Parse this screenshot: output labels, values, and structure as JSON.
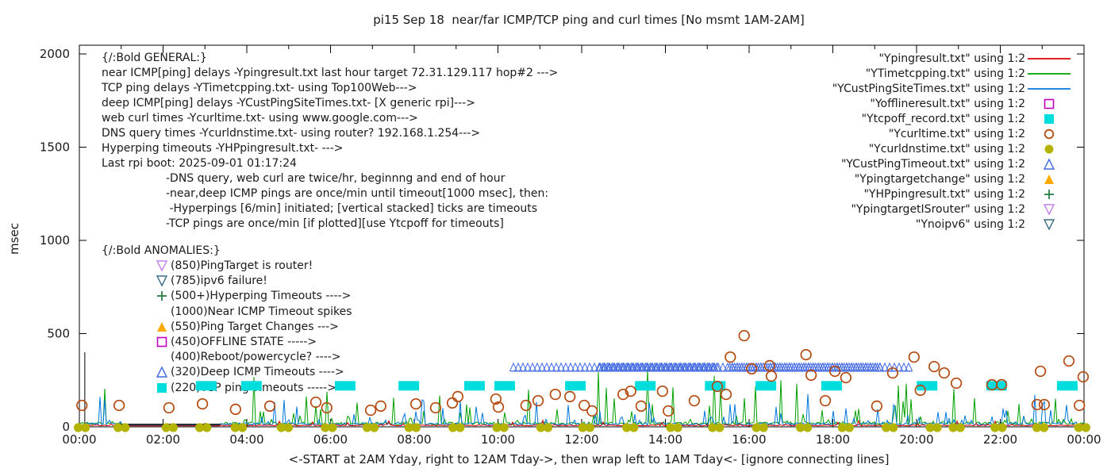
{
  "title": "pi15 Sep 18  near/far ICMP/TCP ping and curl times [No msmt 1AM-2AM]",
  "caption": "<-START at 2AM Yday, right to 12AM Tday->, then wrap left to 1AM Tday<- [ignore connecting lines]",
  "annotations": {
    "general_lines": [
      "{/:Bold GENERAL:}",
      "near ICMP[ping] delays -Ypingresult.txt last hour target 72.31.129.117 hop#2 --->",
      "TCP ping delays -YTimetcpping.txt- using Top100Web--->",
      "deep ICMP[ping] delays -YCustPingSiteTimes.txt- [X generic rpi]--->",
      "web curl times -Ycurltime.txt- using www.google.com--->",
      "DNS query times -Ycurldnstime.txt- using router? 192.168.1.254--->",
      "Hyperping timeouts -YHPpingresult.txt- --->",
      "Last rpi boot: 2025-09-01 01:17:24"
    ],
    "general_indent_lines": [
      "-DNS query, web curl are twice/hr, beginnng and end of hour",
      "-near,deep ICMP pings are once/min until timeout[1000 msec], then:",
      " -Hyperpings [6/min] initiated; [vertical stacked] ticks are timeouts",
      "-TCP pings are once/min [if plotted][use Ytcpoff for timeouts]"
    ],
    "anomalies_header": "{/:Bold ANOMALIES:}",
    "anomaly_rows": [
      {
        "marker": "triangle-down-open",
        "color": "#c080e8",
        "label": "(850)PingTarget is router!"
      },
      {
        "marker": "triangle-down-open",
        "color": "#3a6d85",
        "label": "(785)ipv6 failure!"
      },
      {
        "marker": "plus",
        "color": "#217a3c",
        "label": "(500+)Hyperping Timeouts ---->"
      },
      {
        "marker": "none",
        "color": "",
        "label": "(1000)Near ICMP Timeout spikes"
      },
      {
        "marker": "triangle-up-filled",
        "color": "#ffaa00",
        "label": "(550)Ping Target Changes --->"
      },
      {
        "marker": "square-open",
        "color": "#bf00bf",
        "label": "(450)OFFLINE STATE ----->"
      },
      {
        "marker": "none",
        "color": "",
        "label": "(400)Reboot/powercycle? ---->"
      },
      {
        "marker": "triangle-up-open",
        "color": "#4169e1",
        "label": "(320)Deep ICMP Timeouts ---->"
      },
      {
        "marker": "square-filled",
        "color": "#00dddd",
        "label": "(220)TCP ping Timeouts ----->"
      }
    ]
  },
  "legend": {
    "entries": [
      {
        "label": "\"Ypingresult.txt\" using 1:2",
        "marker": "line",
        "color": "#e00000"
      },
      {
        "label": "\"YTimetcpping.txt\" using 1:2",
        "marker": "line",
        "color": "#00a000"
      },
      {
        "label": "\"YCustPingSiteTimes.txt\" using 1:2",
        "marker": "line",
        "color": "#0077dd"
      },
      {
        "label": "\"Yofflineresult.txt\" using 1:2",
        "marker": "square-open",
        "color": "#bf00bf"
      },
      {
        "label": "\"Ytcpoff_record.txt\" using 1:2",
        "marker": "square-filled",
        "color": "#00dddd"
      },
      {
        "label": "\"Ycurltime.txt\" using 1:2",
        "marker": "circle-open",
        "color": "#b54a10"
      },
      {
        "label": "\"Ycurldnstime.txt\" using 1:2",
        "marker": "circle-filled",
        "color": "#b3b300"
      },
      {
        "label": "\"YCustPingTimeout.txt\" using 1:2",
        "marker": "triangle-up-open",
        "color": "#4169e1"
      },
      {
        "label": "\"Ypingtargetchange\" using 1:2",
        "marker": "triangle-up-filled",
        "color": "#ffaa00"
      },
      {
        "label": "\"YHPpingresult.txt\" using 1:2",
        "marker": "plus",
        "color": "#217a3c"
      },
      {
        "label": "\"YpingtargetISrouter\" using 1:2",
        "marker": "triangle-down-open",
        "color": "#c080e8"
      },
      {
        "label": "\"Ynoipv6\" using 1:2",
        "marker": "triangle-down-open",
        "color": "#3a6d85"
      }
    ]
  },
  "chart_data": {
    "type": "line",
    "title": "pi15 Sep 18  near/far ICMP/TCP ping and curl times [No msmt 1AM-2AM]",
    "xlabel": "<-START at 2AM Yday, right to 12AM Tday->, then wrap left to 1AM Tday<- [ignore connecting lines]",
    "ylabel": "msec",
    "x_ticks": [
      "00:00",
      "02:00",
      "04:00",
      "06:00",
      "08:00",
      "10:00",
      "12:00",
      "14:00",
      "16:00",
      "18:00",
      "20:00",
      "22:00",
      "00:00"
    ],
    "x_range_hours": [
      0,
      24
    ],
    "y_ticks": [
      0,
      500,
      1000,
      1500,
      2000
    ],
    "y_range": [
      0,
      2000
    ],
    "grid": false,
    "legend_position": "top-right",
    "no_measurement_window_hours": [
      1.0,
      3.35
    ],
    "series": [
      {
        "name": "Ypingresult.txt",
        "style": "noise-line",
        "color": "#e00000",
        "baseline_msec": 5,
        "jitter_msec": 5,
        "max_spike_msec": 30,
        "sharpness": 30,
        "seed": 9
      },
      {
        "name": "YTimetcpping.txt",
        "style": "noise-line",
        "color": "#00a000",
        "baseline_msec": 10,
        "jitter_msec": 16,
        "max_spike_msec": 300,
        "sharpness": 22,
        "seed": 11
      },
      {
        "name": "YCustPingSiteTimes.txt",
        "style": "noise-line",
        "color": "#0077dd",
        "baseline_msec": 8,
        "jitter_msec": 14,
        "max_spike_msec": 170,
        "sharpness": 18,
        "seed": 5
      },
      {
        "name": "Yofflineresult.txt",
        "style": "square-open",
        "color": "#bf00bf",
        "points": []
      },
      {
        "name": "Ytcpoff_record.txt",
        "style": "square-filled",
        "color": "#00dddd",
        "value_msec": 220,
        "hours": [
          3.03,
          4.11,
          6.35,
          7.87,
          9.44,
          10.16,
          11.85,
          13.52,
          15.19,
          16.4,
          17.97,
          20.25,
          21.91,
          23.6
        ]
      },
      {
        "name": "Ycurltime.txt",
        "style": "circle-open",
        "color": "#b54a10",
        "points": [
          [
            0.06,
            115
          ],
          [
            0.95,
            115
          ],
          [
            2.14,
            102
          ],
          [
            2.94,
            123
          ],
          [
            3.73,
            94
          ],
          [
            4.55,
            111
          ],
          [
            5.65,
            132
          ],
          [
            5.91,
            102
          ],
          [
            6.96,
            89
          ],
          [
            7.2,
            111
          ],
          [
            8.04,
            123
          ],
          [
            8.51,
            102
          ],
          [
            8.91,
            128
          ],
          [
            9.04,
            162
          ],
          [
            9.95,
            149
          ],
          [
            10.01,
            106
          ],
          [
            10.67,
            115
          ],
          [
            10.96,
            140
          ],
          [
            11.37,
            174
          ],
          [
            11.72,
            162
          ],
          [
            12.06,
            115
          ],
          [
            12.25,
            85
          ],
          [
            12.99,
            174
          ],
          [
            13.17,
            191
          ],
          [
            13.42,
            111
          ],
          [
            13.93,
            191
          ],
          [
            14.07,
            85
          ],
          [
            14.69,
            140
          ],
          [
            15.24,
            217
          ],
          [
            15.45,
            174
          ],
          [
            15.55,
            374
          ],
          [
            15.88,
            489
          ],
          [
            16.06,
            311
          ],
          [
            16.49,
            328
          ],
          [
            16.53,
            272
          ],
          [
            17.36,
            387
          ],
          [
            17.48,
            277
          ],
          [
            17.82,
            140
          ],
          [
            18.05,
            298
          ],
          [
            18.31,
            264
          ],
          [
            19.05,
            111
          ],
          [
            19.43,
            289
          ],
          [
            19.94,
            374
          ],
          [
            20.09,
            196
          ],
          [
            20.42,
            323
          ],
          [
            20.66,
            289
          ],
          [
            20.95,
            234
          ],
          [
            21.8,
            226
          ],
          [
            22.03,
            226
          ],
          [
            22.88,
            119
          ],
          [
            22.96,
            298
          ],
          [
            23.05,
            119
          ],
          [
            23.64,
            353
          ],
          [
            23.89,
            115
          ],
          [
            23.98,
            268
          ]
        ]
      },
      {
        "name": "Ycurldnstime.txt",
        "style": "circle-filled",
        "color": "#b3b300",
        "value_msec": 0,
        "hours": [
          0.05,
          1.0,
          2.15,
          2.95,
          3.8,
          4.9,
          5.95,
          6.95,
          7.95,
          9.0,
          10.05,
          11.1,
          12.1,
          13.15,
          14.2,
          15.2,
          16.25,
          17.3,
          18.3,
          19.35,
          20.4,
          20.95,
          21.95,
          22.95,
          23.95
        ]
      },
      {
        "name": "YCustPingTimeout.txt",
        "style": "triangle-band",
        "color": "#4169e1",
        "value_msec": 320,
        "band_hours": [
          10.37,
          19.82
        ],
        "dense_subranges_hours": [
          [
            12.44,
            15.26
          ],
          [
            15.54,
            19.15
          ]
        ]
      },
      {
        "name": "Ypingtargetchange",
        "style": "triangle-up-filled",
        "color": "#ffaa00",
        "points": []
      },
      {
        "name": "YHPpingresult.txt",
        "style": "plus",
        "color": "#217a3c",
        "points": []
      },
      {
        "name": "YpingtargetISrouter",
        "style": "triangle-down-open",
        "color": "#c080e8",
        "points": []
      },
      {
        "name": "Ynoipv6",
        "style": "triangle-down-open",
        "color": "#3a6d85",
        "points": []
      }
    ],
    "extras": {
      "reboot_impulse": {
        "hour": 0.13,
        "msec": 400,
        "color": "#000000"
      },
      "flat_segment": {
        "from_hour": 0.95,
        "to_hour": 3.37,
        "msec": 13,
        "color": "#000000"
      }
    }
  }
}
